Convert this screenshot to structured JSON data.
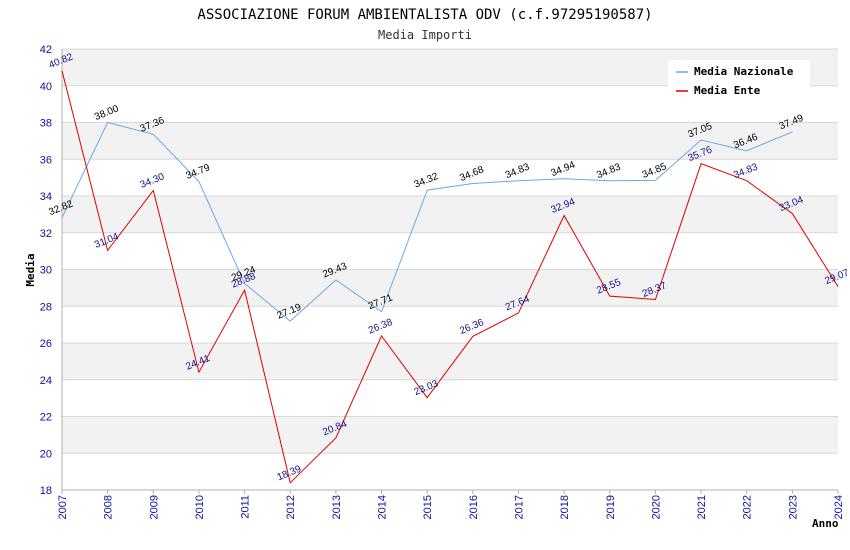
{
  "header": {
    "title": "ASSOCIAZIONE FORUM AMBIENTALISTA ODV (c.f.97295190587)",
    "subtitle": "Media Importi"
  },
  "chart_data": {
    "type": "line",
    "xlabel": "Anno",
    "ylabel": "Media",
    "ylim": [
      18,
      42
    ],
    "yticks": [
      18,
      20,
      22,
      24,
      26,
      28,
      30,
      32,
      34,
      36,
      38,
      40,
      42
    ],
    "x": [
      "2007",
      "2008",
      "2009",
      "2010",
      "2011",
      "2012",
      "2013",
      "2014",
      "2015",
      "2016",
      "2017",
      "2018",
      "2019",
      "2020",
      "2021",
      "2022",
      "2023",
      "2024"
    ],
    "grid": "horizontal bands",
    "legend_position": "top-right",
    "series": [
      {
        "name": "Media Nazionale",
        "color": "#6aa9e8",
        "label_color": "#000000",
        "values": [
          32.82,
          38.0,
          37.36,
          34.79,
          29.24,
          27.19,
          29.43,
          27.71,
          34.32,
          34.68,
          34.83,
          34.94,
          34.83,
          34.85,
          37.05,
          36.46,
          37.49,
          null
        ],
        "labels": [
          "32.82",
          "38.00",
          "37.36",
          "34.79",
          "29.24",
          "27.19",
          "29.43",
          "27.71",
          "34.32",
          "34.68",
          "34.83",
          "34.94",
          "34.83",
          "34.85",
          "37.05",
          "36.46",
          "37.49",
          null
        ]
      },
      {
        "name": "Media Ente",
        "color": "#e00000",
        "label_color": "#10108a",
        "values": [
          40.82,
          31.04,
          34.3,
          24.41,
          28.88,
          18.39,
          20.84,
          26.38,
          23.03,
          26.36,
          27.64,
          32.94,
          28.55,
          28.37,
          35.76,
          34.83,
          33.04,
          29.07
        ],
        "labels": [
          "40.82",
          "31.04",
          "34.30",
          "24.41",
          "28.88",
          "18.39",
          "20.84",
          "26.38",
          "23.03",
          "26.36",
          "27.64",
          "32.94",
          "28.55",
          "28.37",
          "35.76",
          "34.83",
          "33.04",
          "29.07"
        ]
      }
    ]
  }
}
